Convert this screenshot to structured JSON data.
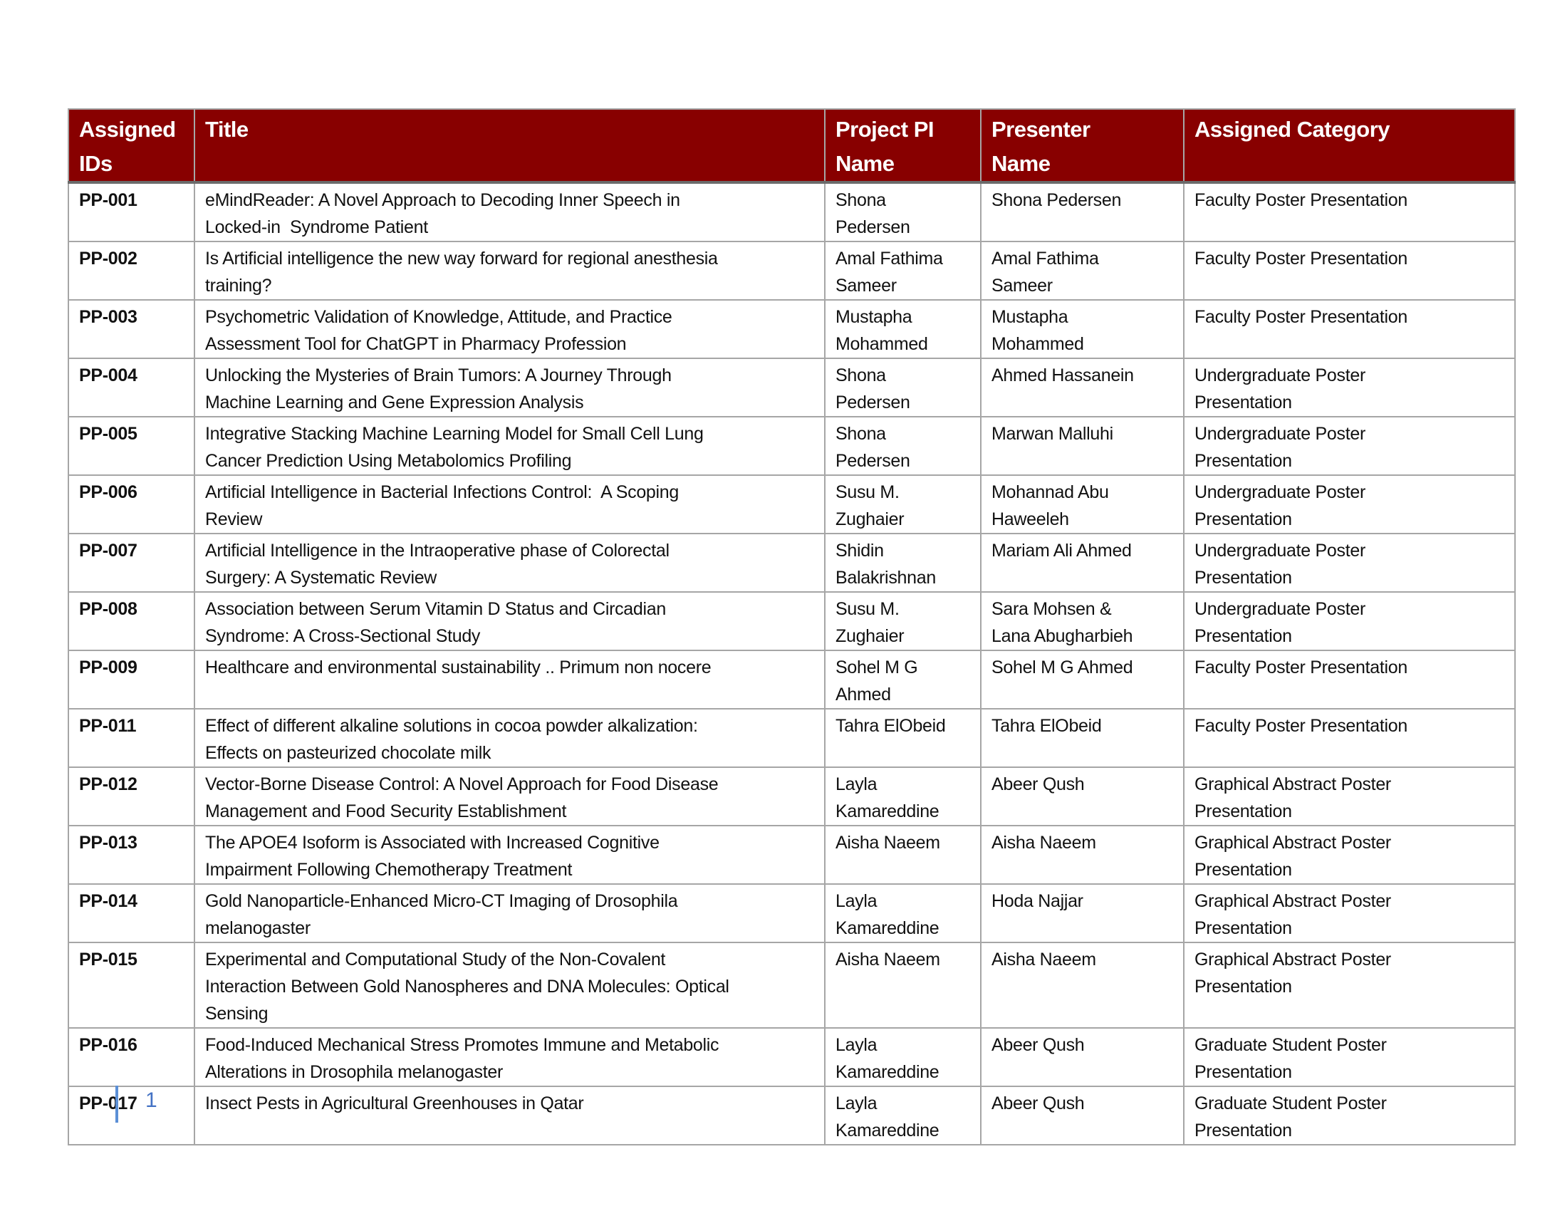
{
  "colors": {
    "header_bg": "#880000",
    "header_text": "#ffffff",
    "border": "#a6a6a6",
    "page_number": "#4472c4"
  },
  "table": {
    "headers": [
      "Assigned\nIDs",
      "Title",
      "Project PI\nName",
      "Presenter\nName",
      "Assigned Category"
    ],
    "rows": [
      {
        "id": "PP-001",
        "title": "eMindReader: A Novel Approach to Decoding Inner Speech in\nLocked-in  Syndrome Patient",
        "pi": "Shona\nPedersen",
        "presenter": "Shona Pedersen",
        "category": "Faculty Poster Presentation"
      },
      {
        "id": "PP-002",
        "title": "Is Artificial intelligence the new way forward for regional anesthesia\ntraining?",
        "pi": "Amal Fathima\nSameer",
        "presenter": "Amal Fathima\nSameer",
        "category": "Faculty Poster Presentation"
      },
      {
        "id": "PP-003",
        "title": "Psychometric Validation of Knowledge, Attitude, and Practice\nAssessment Tool for ChatGPT in Pharmacy Profession",
        "pi": "Mustapha\nMohammed",
        "presenter": "Mustapha\nMohammed",
        "category": "Faculty Poster Presentation"
      },
      {
        "id": "PP-004",
        "title": "Unlocking the Mysteries of Brain Tumors: A Journey Through\nMachine Learning and Gene Expression Analysis",
        "pi": "Shona\nPedersen",
        "presenter": "Ahmed Hassanein",
        "category": "Undergraduate Poster\nPresentation"
      },
      {
        "id": "PP-005",
        "title": "Integrative Stacking Machine Learning Model for Small Cell Lung\nCancer Prediction Using Metabolomics Profiling",
        "pi": "Shona\nPedersen",
        "presenter": "Marwan Malluhi",
        "category": "Undergraduate Poster\nPresentation"
      },
      {
        "id": "PP-006",
        "title": "Artificial Intelligence in Bacterial Infections Control:  A Scoping\nReview",
        "pi": "Susu M.\nZughaier",
        "presenter": "Mohannad Abu\nHaweeleh",
        "category": "Undergraduate Poster\nPresentation"
      },
      {
        "id": "PP-007",
        "title": "Artificial Intelligence in the Intraoperative phase of Colorectal\nSurgery: A Systematic Review",
        "pi": "Shidin\nBalakrishnan",
        "presenter": "Mariam Ali Ahmed",
        "category": "Undergraduate Poster\nPresentation"
      },
      {
        "id": "PP-008",
        "title": "Association between Serum Vitamin D Status and Circadian\nSyndrome: A Cross-Sectional Study",
        "pi": "Susu M.\nZughaier",
        "presenter": "Sara Mohsen &\nLana Abugharbieh",
        "category": "Undergraduate Poster\nPresentation"
      },
      {
        "id": "PP-009",
        "title": "Healthcare and environmental sustainability .. Primum non nocere",
        "pi": "Sohel M G\nAhmed",
        "presenter": "Sohel M G Ahmed",
        "category": "Faculty Poster Presentation"
      },
      {
        "id": "PP-011",
        "title": "Effect of different alkaline solutions in cocoa powder alkalization:\nEffects on pasteurized chocolate milk",
        "pi": "Tahra ElObeid",
        "presenter": "Tahra ElObeid",
        "category": "Faculty Poster Presentation"
      },
      {
        "id": "PP-012",
        "title": "Vector-Borne Disease Control: A Novel Approach for Food Disease\nManagement and Food Security Establishment",
        "pi": "Layla\nKamareddine",
        "presenter": "Abeer Qush",
        "category": "Graphical Abstract Poster\nPresentation"
      },
      {
        "id": "PP-013",
        "title": "The APOE4 Isoform is Associated with Increased Cognitive\nImpairment Following Chemotherapy Treatment",
        "pi": "Aisha Naeem",
        "presenter": "Aisha Naeem",
        "category": "Graphical Abstract Poster\nPresentation"
      },
      {
        "id": "PP-014",
        "title": "Gold Nanoparticle-Enhanced Micro-CT Imaging of Drosophila\nmelanogaster",
        "pi": "Layla\nKamareddine",
        "presenter": "Hoda Najjar",
        "category": "Graphical Abstract Poster\nPresentation"
      },
      {
        "id": "PP-015",
        "title": "Experimental and Computational Study of the Non-Covalent\nInteraction Between Gold Nanospheres and DNA Molecules: Optical\nSensing",
        "pi": "Aisha Naeem",
        "presenter": "Aisha Naeem",
        "category": "Graphical Abstract Poster\nPresentation"
      },
      {
        "id": "PP-016",
        "title": "Food-Induced Mechanical Stress Promotes Immune and Metabolic\nAlterations in Drosophila melanogaster",
        "pi": "Layla\nKamareddine",
        "presenter": "Abeer Qush",
        "category": "Graduate Student Poster\nPresentation"
      },
      {
        "id": "PP-017",
        "title": "Insect Pests in Agricultural Greenhouses in Qatar",
        "pi": "Layla\nKamareddine",
        "presenter": "Abeer Qush",
        "category": "Graduate Student Poster\nPresentation"
      }
    ]
  },
  "footer": {
    "page_number": "1"
  }
}
